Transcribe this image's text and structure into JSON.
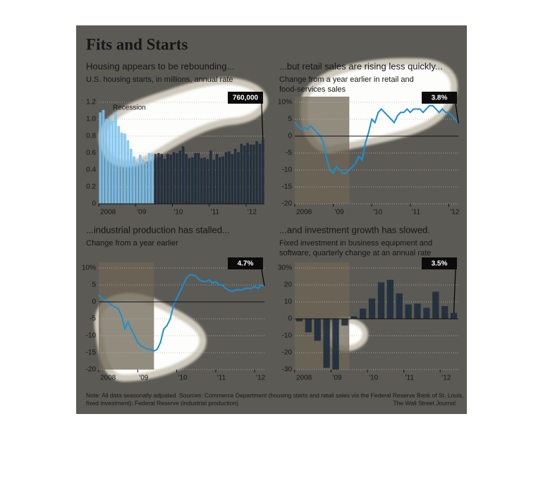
{
  "title": "Fits and Starts",
  "note": "Note: All data seasonally adjusted",
  "sources": [
    "Sources: Commerce Department (housing starts and retail sales via the Federal Reserve Bank of St. Louis,",
    "fixed investment); Federal Reserve (industrial production)"
  ],
  "credit": "The Wall Street Journal",
  "chart_data": [
    {
      "type": "bar",
      "title": "Housing appears to be rebounding...",
      "subtitle": [
        "U.S. housing starts, in millions, annual rate"
      ],
      "categories": [
        "2008",
        null,
        null,
        null,
        null,
        null,
        null,
        null,
        null,
        null,
        null,
        null,
        "'09",
        null,
        null,
        null,
        null,
        null,
        null,
        null,
        null,
        null,
        null,
        null,
        "'10",
        null,
        null,
        null,
        null,
        null,
        null,
        null,
        null,
        null,
        null,
        null,
        "'11",
        null,
        null,
        null,
        null,
        null,
        null,
        null,
        null,
        null,
        null,
        null,
        "'12",
        null,
        null,
        null,
        null,
        null
      ],
      "values": [
        1.08,
        1.11,
        1.0,
        1.01,
        0.98,
        1.08,
        0.92,
        0.84,
        0.83,
        0.75,
        0.65,
        0.56,
        0.49,
        0.58,
        0.52,
        0.48,
        0.6,
        0.59,
        0.59,
        0.6,
        0.59,
        0.53,
        0.59,
        0.58,
        0.61,
        0.6,
        0.63,
        0.68,
        0.59,
        0.54,
        0.55,
        0.6,
        0.6,
        0.54,
        0.55,
        0.53,
        0.63,
        0.52,
        0.59,
        0.55,
        0.56,
        0.61,
        0.62,
        0.59,
        0.65,
        0.61,
        0.71,
        0.69,
        0.72,
        0.7,
        0.7,
        0.74,
        0.71,
        0.76
      ],
      "color": "#1f2c3c",
      "highlight_color": "#7cc2ee",
      "recession": {
        "label": "Recession",
        "range": [
          0,
          17
        ]
      },
      "callout": "760,000",
      "ylim": [
        0,
        1.2
      ],
      "yticks": [
        0,
        0.2,
        0.4,
        0.6,
        0.8,
        {
          "value": 1,
          "label": "1.0"
        },
        1.2
      ],
      "grid": true
    },
    {
      "type": "line",
      "title": "...but retail sales are rising less quickly...",
      "subtitle": [
        "Change from a year earlier in retail and",
        "food-services sales"
      ],
      "categories": [
        "2008",
        null,
        null,
        null,
        null,
        null,
        null,
        null,
        null,
        null,
        null,
        null,
        "'09",
        null,
        null,
        null,
        null,
        null,
        null,
        null,
        null,
        null,
        null,
        null,
        "'10",
        null,
        null,
        null,
        null,
        null,
        null,
        null,
        null,
        null,
        null,
        null,
        "'11",
        null,
        null,
        null,
        null,
        null,
        null,
        null,
        null,
        null,
        null,
        null,
        "'12",
        null,
        null,
        null
      ],
      "values": [
        4,
        3,
        2,
        2.5,
        2,
        3,
        2,
        1,
        0,
        -2,
        -7,
        -10,
        -11,
        -9,
        -10,
        -11,
        -11,
        -10,
        -9,
        -8,
        -6,
        -7,
        -2,
        1,
        5,
        4,
        7,
        8,
        7,
        6,
        5,
        4,
        6,
        7,
        7,
        8,
        7,
        8,
        8,
        8,
        7,
        8,
        9,
        9,
        8,
        7,
        8,
        7,
        7,
        6,
        5,
        3.8
      ],
      "color": "#1a8fd0",
      "recession": {
        "range": [
          0,
          17
        ]
      },
      "callout": "3.8%",
      "ylim": [
        -20,
        10
      ],
      "yticks": [
        -20,
        -15,
        -10,
        -5,
        0,
        5,
        {
          "value": 10,
          "label": "10%"
        }
      ],
      "grid": true
    },
    {
      "type": "line",
      "title": "...industrial production has stalled...",
      "subtitle": [
        "Change from a year earlier"
      ],
      "categories": [
        "2008",
        null,
        null,
        null,
        null,
        null,
        null,
        null,
        null,
        null,
        null,
        null,
        "'09",
        null,
        null,
        null,
        null,
        null,
        null,
        null,
        null,
        null,
        null,
        null,
        "'10",
        null,
        null,
        null,
        null,
        null,
        null,
        null,
        null,
        null,
        null,
        null,
        "'11",
        null,
        null,
        null,
        null,
        null,
        null,
        null,
        null,
        null,
        null,
        null,
        "'12",
        null,
        null,
        null
      ],
      "values": [
        2,
        1,
        0.5,
        0,
        -1,
        -1.5,
        -2,
        -4,
        -8,
        -6,
        -8,
        -10,
        -12,
        -13,
        -13.5,
        -14,
        -14,
        -14.5,
        -14,
        -12,
        -8,
        -7,
        -5,
        -1,
        1,
        3,
        5,
        7,
        8,
        8,
        7.5,
        6.5,
        6,
        6,
        6.5,
        5.5,
        6,
        5,
        5,
        4,
        3.5,
        3,
        3.5,
        3.5,
        3.5,
        4,
        4,
        4,
        4.5,
        4,
        5,
        4.7
      ],
      "color": "#1a8fd0",
      "recession": {
        "range": [
          0,
          17
        ]
      },
      "callout": "4.7%",
      "ylim": [
        -20,
        10
      ],
      "yticks": [
        -20,
        -15,
        -10,
        -5,
        0,
        5,
        {
          "value": 10,
          "label": "10%"
        }
      ],
      "grid": true
    },
    {
      "type": "bar",
      "title": "...and investment growth has slowed.",
      "subtitle": [
        "Fixed investment in business equipment and",
        "software, quarterly change at an annual rate"
      ],
      "categories": [
        "2008",
        null,
        null,
        null,
        "'09",
        null,
        null,
        null,
        "'10",
        null,
        null,
        null,
        "'11",
        null,
        null,
        null,
        "'12",
        null
      ],
      "values": [
        -1.5,
        -8,
        -13,
        -29,
        -30,
        -4,
        1.5,
        6,
        12,
        21.5,
        23,
        15,
        8.5,
        9,
        6.5,
        16,
        7.5,
        3.5
      ],
      "color": "#1f2c3c",
      "recession": {
        "range": [
          0,
          5
        ]
      },
      "callout": "3.5%",
      "ylim": [
        -30,
        30
      ],
      "yticks": [
        -30,
        -20,
        -10,
        0,
        10,
        20,
        {
          "value": 30,
          "label": "30%"
        }
      ],
      "grid": true
    }
  ]
}
